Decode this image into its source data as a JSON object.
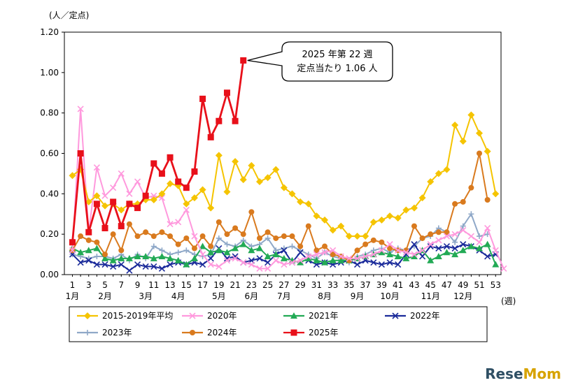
{
  "chart_data": {
    "type": "line",
    "y_unit_label": "(人／定点)",
    "x_unit_label": "(週)",
    "ylim": [
      0,
      1.2
    ],
    "y_ticks": [
      "0.00",
      "0.20",
      "0.40",
      "0.60",
      "0.80",
      "1.00",
      "1.20"
    ],
    "x_ticks": [
      "1",
      "3",
      "5",
      "7",
      "9",
      "11",
      "13",
      "15",
      "17",
      "19",
      "21",
      "23",
      "25",
      "27",
      "29",
      "31",
      "33",
      "35",
      "37",
      "39",
      "41",
      "43",
      "45",
      "47",
      "49",
      "51",
      "53"
    ],
    "month_labels": [
      {
        "label": "1月",
        "week": 1
      },
      {
        "label": "2月",
        "week": 5
      },
      {
        "label": "3月",
        "week": 10
      },
      {
        "label": "4月",
        "week": 14
      },
      {
        "label": "5月",
        "week": 19
      },
      {
        "label": "6月",
        "week": 23
      },
      {
        "label": "7月",
        "week": 27
      },
      {
        "label": "8月",
        "week": 32
      },
      {
        "label": "9月",
        "week": 36
      },
      {
        "label": "10月",
        "week": 40
      },
      {
        "label": "11月",
        "week": 45
      },
      {
        "label": "12月",
        "week": 49
      }
    ],
    "callout": {
      "line1": "2025 年第 22 週",
      "line2": "定点当たり 1.06 人",
      "week": 22,
      "value": 1.06
    },
    "series": [
      {
        "name": "2015-2019年平均",
        "color": "#f5c400",
        "marker": "diamond",
        "values": [
          0.49,
          0.52,
          0.36,
          0.39,
          0.34,
          0.35,
          0.32,
          0.35,
          0.35,
          0.37,
          0.37,
          0.4,
          0.45,
          0.44,
          0.35,
          0.38,
          0.42,
          0.33,
          0.59,
          0.41,
          0.56,
          0.47,
          0.54,
          0.46,
          0.48,
          0.52,
          0.43,
          0.4,
          0.36,
          0.35,
          0.29,
          0.27,
          0.22,
          0.24,
          0.19,
          0.19,
          0.19,
          0.26,
          0.27,
          0.29,
          0.28,
          0.32,
          0.33,
          0.38,
          0.46,
          0.5,
          0.52,
          0.74,
          0.66,
          0.79,
          0.7,
          0.61,
          0.4
        ]
      },
      {
        "name": "2020年",
        "color": "#ff99dd",
        "marker": "x",
        "values": [
          0.12,
          0.82,
          0.21,
          0.53,
          0.39,
          0.43,
          0.5,
          0.4,
          0.46,
          0.38,
          0.39,
          0.38,
          0.25,
          0.26,
          0.32,
          0.19,
          0.1,
          0.05,
          0.04,
          0.07,
          0.08,
          0.06,
          0.05,
          0.03,
          0.03,
          0.07,
          0.05,
          0.06,
          0.07,
          0.09,
          0.1,
          0.11,
          0.12,
          0.09,
          0.08,
          0.08,
          0.09,
          0.1,
          0.12,
          0.15,
          0.12,
          0.11,
          0.1,
          0.12,
          0.15,
          0.17,
          0.19,
          0.2,
          0.22,
          0.19,
          0.16,
          0.23,
          0.12,
          0.03
        ]
      },
      {
        "name": "2021年",
        "color": "#22aa55",
        "marker": "triangle",
        "values": [
          0.13,
          0.11,
          0.12,
          0.13,
          0.08,
          0.07,
          0.08,
          0.08,
          0.09,
          0.09,
          0.08,
          0.09,
          0.08,
          0.07,
          0.05,
          0.08,
          0.14,
          0.11,
          0.12,
          0.11,
          0.13,
          0.15,
          0.12,
          0.13,
          0.09,
          0.1,
          0.08,
          0.07,
          0.06,
          0.08,
          0.07,
          0.06,
          0.07,
          0.07,
          0.07,
          0.08,
          0.09,
          0.1,
          0.11,
          0.1,
          0.09,
          0.08,
          0.09,
          0.12,
          0.07,
          0.09,
          0.11,
          0.1,
          0.12,
          0.14,
          0.13,
          0.15,
          0.05
        ]
      },
      {
        "name": "2022年",
        "color": "#1a2a9a",
        "marker": "x",
        "values": [
          0.1,
          0.06,
          0.07,
          0.05,
          0.05,
          0.04,
          0.05,
          0.02,
          0.05,
          0.04,
          0.04,
          0.03,
          0.05,
          0.06,
          0.05,
          0.06,
          0.05,
          0.08,
          0.13,
          0.08,
          0.09,
          0.06,
          0.07,
          0.08,
          0.06,
          0.1,
          0.12,
          0.06,
          0.11,
          0.07,
          0.05,
          0.06,
          0.05,
          0.06,
          0.07,
          0.05,
          0.07,
          0.06,
          0.05,
          0.06,
          0.05,
          0.1,
          0.15,
          0.09,
          0.14,
          0.13,
          0.14,
          0.13,
          0.15,
          0.14,
          0.12,
          0.09,
          0.1
        ]
      },
      {
        "name": "2023年",
        "color": "#8fa8c8",
        "marker": "plus",
        "values": [
          0.1,
          0.09,
          0.08,
          0.09,
          0.09,
          0.08,
          0.1,
          0.07,
          0.1,
          0.08,
          0.14,
          0.12,
          0.1,
          0.11,
          0.12,
          0.1,
          0.09,
          0.1,
          0.18,
          0.15,
          0.14,
          0.17,
          0.14,
          0.15,
          0.18,
          0.12,
          0.13,
          0.14,
          0.12,
          0.1,
          0.08,
          0.11,
          0.09,
          0.08,
          0.06,
          0.09,
          0.1,
          0.12,
          0.13,
          0.11,
          0.13,
          0.12,
          0.14,
          0.18,
          0.19,
          0.23,
          0.21,
          0.16,
          0.24,
          0.3,
          0.19,
          0.2
        ]
      },
      {
        "name": "2024年",
        "color": "#d97a1e",
        "marker": "circle",
        "values": [
          0.12,
          0.19,
          0.17,
          0.16,
          0.1,
          0.2,
          0.12,
          0.25,
          0.19,
          0.21,
          0.19,
          0.21,
          0.19,
          0.15,
          0.18,
          0.13,
          0.19,
          0.14,
          0.26,
          0.2,
          0.23,
          0.2,
          0.31,
          0.18,
          0.21,
          0.18,
          0.19,
          0.19,
          0.14,
          0.24,
          0.12,
          0.14,
          0.1,
          0.09,
          0.07,
          0.12,
          0.15,
          0.17,
          0.16,
          0.13,
          0.12,
          0.12,
          0.24,
          0.18,
          0.2,
          0.21,
          0.21,
          0.35,
          0.36,
          0.43,
          0.6,
          0.37
        ]
      },
      {
        "name": "2025年",
        "color": "#e8101a",
        "marker": "square",
        "values": [
          0.16,
          0.6,
          0.21,
          0.35,
          0.23,
          0.36,
          0.24,
          0.35,
          0.33,
          0.39,
          0.55,
          0.5,
          0.58,
          0.46,
          0.43,
          0.51,
          0.87,
          0.68,
          0.76,
          0.9,
          0.76,
          1.06
        ]
      }
    ]
  },
  "watermark": {
    "part1": "Rese",
    "part2": "Mom"
  }
}
